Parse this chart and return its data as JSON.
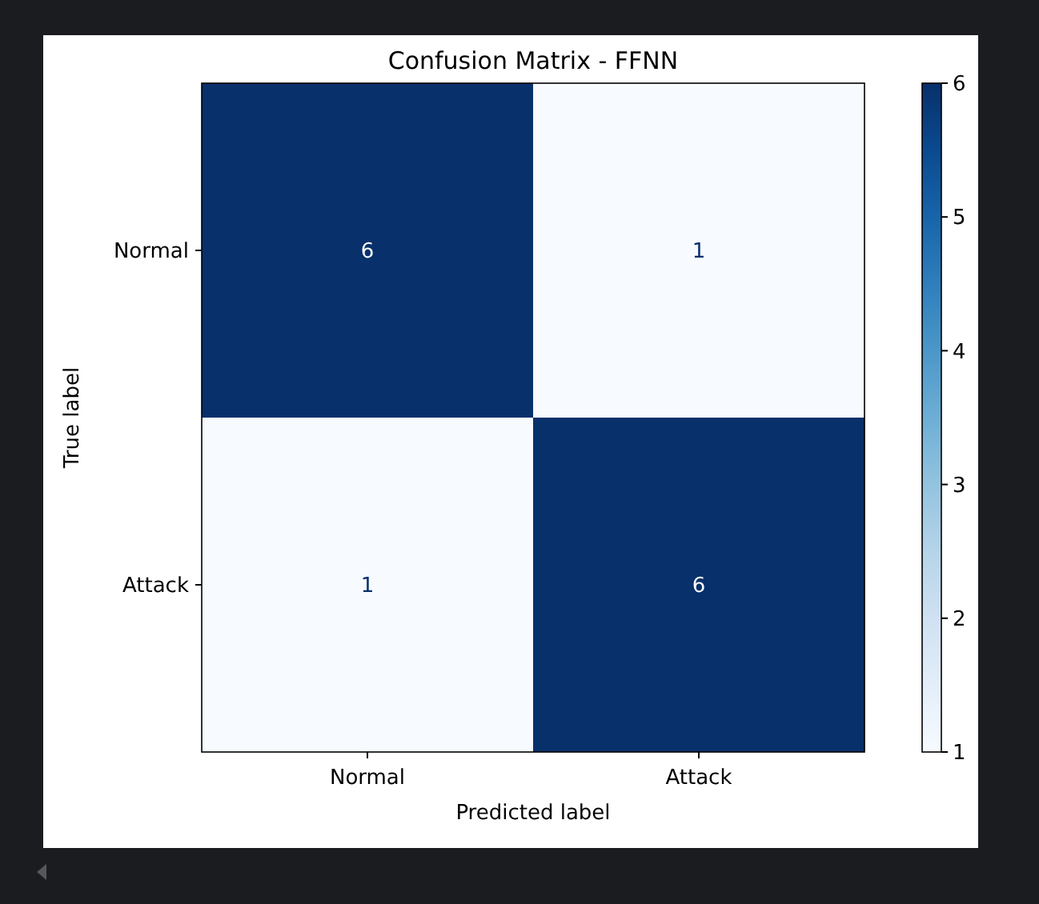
{
  "chart_data": {
    "type": "heatmap",
    "title": "Confusion Matrix - FFNN",
    "xlabel": "Predicted label",
    "ylabel": "True label",
    "categories": [
      "Normal",
      "Attack"
    ],
    "y_categories": [
      "Normal",
      "Attack"
    ],
    "cells": [
      [
        6,
        1
      ],
      [
        1,
        6
      ]
    ],
    "clim": [
      1,
      6
    ],
    "cticks": [
      1,
      2,
      3,
      4,
      5,
      6
    ],
    "data_labels": true
  }
}
